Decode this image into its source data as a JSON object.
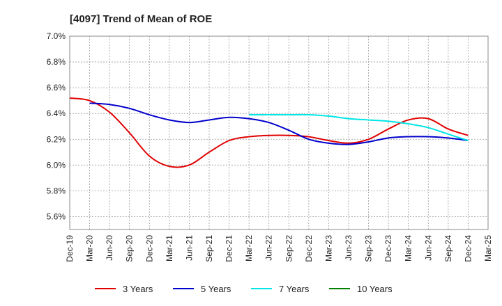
{
  "chart_data": {
    "type": "line",
    "title": "[4097]  Trend of Mean of ROE",
    "xlabel": "",
    "ylabel": "",
    "ylim": [
      5.5,
      7.0
    ],
    "yticks": [
      5.6,
      5.8,
      6.0,
      6.2,
      6.4,
      6.6,
      6.8,
      7.0
    ],
    "ytick_labels": [
      "5.6%",
      "5.8%",
      "6.0%",
      "6.2%",
      "6.4%",
      "6.6%",
      "6.8%",
      "7.0%"
    ],
    "categories": [
      "Dec-19",
      "Mar-20",
      "Jun-20",
      "Sep-20",
      "Dec-20",
      "Mar-21",
      "Jun-21",
      "Sep-21",
      "Dec-21",
      "Mar-22",
      "Jun-22",
      "Sep-22",
      "Dec-22",
      "Mar-23",
      "Jun-23",
      "Sep-23",
      "Dec-23",
      "Mar-24",
      "Jun-24",
      "Sep-24",
      "Dec-24",
      "Mar-25"
    ],
    "grid": true,
    "legend_position": "bottom",
    "series": [
      {
        "name": "3 Years",
        "color": "#e00000",
        "values": [
          6.52,
          6.5,
          6.41,
          6.25,
          6.07,
          5.99,
          6.0,
          6.1,
          6.19,
          6.22,
          6.23,
          6.23,
          6.22,
          6.19,
          6.17,
          6.2,
          6.28,
          6.35,
          6.36,
          6.28,
          6.23,
          null
        ]
      },
      {
        "name": "5 Years",
        "color": "#0000cc",
        "values": [
          null,
          6.48,
          6.47,
          6.44,
          6.39,
          6.35,
          6.33,
          6.35,
          6.37,
          6.36,
          6.33,
          6.27,
          6.2,
          6.17,
          6.16,
          6.18,
          6.21,
          6.22,
          6.22,
          6.21,
          6.19,
          null
        ]
      },
      {
        "name": "7 Years",
        "color": "#00e5e5",
        "values": [
          null,
          null,
          null,
          null,
          null,
          null,
          null,
          null,
          null,
          6.39,
          6.39,
          6.39,
          6.39,
          6.38,
          6.36,
          6.35,
          6.34,
          6.32,
          6.29,
          6.24,
          6.19,
          null
        ]
      },
      {
        "name": "10 Years",
        "color": "#008000",
        "values": [
          null,
          null,
          null,
          null,
          null,
          null,
          null,
          null,
          null,
          null,
          null,
          null,
          null,
          null,
          null,
          null,
          null,
          null,
          null,
          null,
          null,
          null
        ]
      }
    ]
  }
}
